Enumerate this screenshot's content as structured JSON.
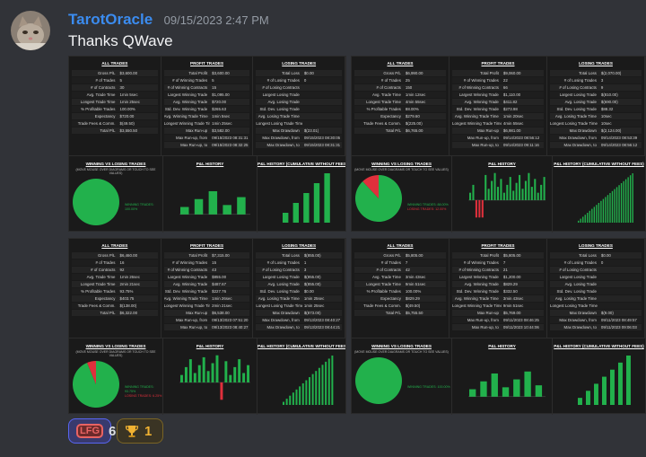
{
  "message": {
    "username": "TarotOracle",
    "timestamp": "09/15/2023 2:47 PM",
    "text": "Thanks QWave"
  },
  "panels": [
    {
      "all_trades": {
        "title": "ALL TRADES",
        "rows": [
          [
            "Gross P/L",
            "$3,600.00"
          ],
          [
            "# of Trades",
            "5"
          ],
          [
            "# of Contracts",
            "30"
          ],
          [
            "Avg. Trade Time",
            "1min 5sec"
          ],
          [
            "Longest Trade Time",
            "1min 25sec"
          ],
          [
            "% Profitable Trades",
            "100.00%"
          ],
          [
            "Expectancy",
            "$720.00"
          ],
          [
            "Trade Fees & Comm.",
            "$(49.50)"
          ],
          [
            "Total P/L",
            "$3,550.50"
          ]
        ]
      },
      "profit_trades": {
        "title": "PROFIT TRADES",
        "rows": [
          [
            "Total Profit",
            "$3,600.00"
          ],
          [
            "# of Winning Trades",
            "5"
          ],
          [
            "# of Winning Contracts",
            "15"
          ],
          [
            "Largest Winning Trade",
            "$1,095.00"
          ],
          [
            "Avg. Winning Trade",
            "$720.00"
          ],
          [
            "Std. Dev. Winning Trade",
            "$265.63"
          ],
          [
            "Avg. Winning Trade Time",
            "1min 5sec"
          ],
          [
            "Longest Winning Trade Time",
            "1min 25sec"
          ],
          [
            "Max Run-up",
            "$3,582.00"
          ],
          [
            "Max Run-up, from",
            "09/15/2023 08:31:31"
          ],
          [
            "Max Run-up, to",
            "09/15/2023 08:32:25"
          ]
        ]
      },
      "losing_trades": {
        "title": "LOSING TRADES",
        "rows": [
          [
            "Total Loss",
            "$0.00"
          ],
          [
            "# of Losing Trades",
            "0"
          ],
          [
            "# of Losing Contracts",
            ""
          ],
          [
            "Largest Losing Trade",
            ""
          ],
          [
            "Avg. Losing Trade",
            ""
          ],
          [
            "Std. Dev. Losing Trade",
            ""
          ],
          [
            "Avg. Losing Trade Time",
            ""
          ],
          [
            "Longest Losing Trade Time",
            ""
          ],
          [
            "Max Drawdown",
            "$(23.01)"
          ],
          [
            "Max Drawdown, from",
            "09/15/2023 08:30:05"
          ],
          [
            "Max Drawdown, to",
            "09/15/2023 08:31:31"
          ]
        ]
      },
      "charts": {
        "pie_title": "WINNING VS LOSING TRADES",
        "pie_sub": "(MOVE MOUSE OVER DIAGRAMS OR TOUCH TO SEE VALUES)",
        "pie_label": "WINNING TRADES: 100.00%",
        "pnl_title": "P&L HISTORY",
        "cum_title": "P&L HISTORY (CUMULATIVE WITHOUT FEES)"
      }
    },
    {
      "all_trades": {
        "title": "ALL TRADES",
        "rows": [
          [
            "Gross P/L",
            "$6,990.00"
          ],
          [
            "# of Trades",
            "25"
          ],
          [
            "# of Contracts",
            "150"
          ],
          [
            "Avg. Trade Time",
            "1min 12sec"
          ],
          [
            "Longest Trade Time",
            "4min 55sec"
          ],
          [
            "% Profitable Trades",
            "88.00%"
          ],
          [
            "Expectancy",
            "$279.60"
          ],
          [
            "Trade Fees & Comm.",
            "$(225.00)"
          ],
          [
            "Total P/L",
            "$6,765.00"
          ]
        ]
      },
      "profit_trades": {
        "title": "PROFIT TRADES",
        "rows": [
          [
            "Total Profit",
            "$9,060.00"
          ],
          [
            "# of Winning Trades",
            "22"
          ],
          [
            "# of Winning Contracts",
            "66"
          ],
          [
            "Largest Winning Trade",
            "$1,110.00"
          ],
          [
            "Avg. Winning Trade",
            "$411.82"
          ],
          [
            "Std. Dev. Winning Trade",
            "$273.98"
          ],
          [
            "Avg. Winning Trade Time",
            "1min 20sec"
          ],
          [
            "Longest Winning Trade Time",
            "4min 55sec"
          ],
          [
            "Max Run-up",
            "$6,981.00"
          ],
          [
            "Max Run-up, from",
            "09/14/2023 08:56:12"
          ],
          [
            "Max Run-up, to",
            "09/14/2023 09:11:16"
          ]
        ]
      },
      "losing_trades": {
        "title": "LOSING TRADES",
        "rows": [
          [
            "Total Loss",
            "$(2,070.00)"
          ],
          [
            "# of Losing Trades",
            "3"
          ],
          [
            "# of Losing Contracts",
            "9"
          ],
          [
            "Largest Losing Trade",
            "$(810.00)"
          ],
          [
            "Avg. Losing Trade",
            "$(690.00)"
          ],
          [
            "Std. Dev. Losing Trade",
            "$88.32"
          ],
          [
            "Avg. Losing Trade Time",
            "10sec"
          ],
          [
            "Longest Losing Trade Time",
            "10sec"
          ],
          [
            "Max Drawdown",
            "$(2,124.00)"
          ],
          [
            "Max Drawdown, from",
            "09/14/2023 08:53:39"
          ],
          [
            "Max Drawdown, to",
            "09/14/2023 08:56:12"
          ]
        ]
      },
      "charts": {
        "pie_title": "WINNING VS LOSING TRADES",
        "pie_sub": "(MOVE MOUSE OVER DIAGRAMS OR TOUCH TO SEE VALUES)",
        "pie_label": "WINNING TRADES: 88.00%",
        "pie_label2": "LOSING TRADES: 12.00%",
        "pnl_title": "P&L HISTORY",
        "cum_title": "P&L HISTORY (CUMULATIVE WITHOUT FEES)"
      }
    },
    {
      "all_trades": {
        "title": "ALL TRADES",
        "rows": [
          [
            "Gross P/L",
            "$6,460.00"
          ],
          [
            "# of Trades",
            "16"
          ],
          [
            "# of Contracts",
            "92"
          ],
          [
            "Avg. Trade Time",
            "1min 26sec"
          ],
          [
            "Longest Trade Time",
            "2min 21sec"
          ],
          [
            "% Profitable Trades",
            "93.75%"
          ],
          [
            "Expectancy",
            "$403.75"
          ],
          [
            "Trade Fees & Comm.",
            "$(138.00)"
          ],
          [
            "Total P/L",
            "$6,322.00"
          ]
        ]
      },
      "profit_trades": {
        "title": "PROFIT TRADES",
        "rows": [
          [
            "Total Profit",
            "$7,315.00"
          ],
          [
            "# of Winning Trades",
            "15"
          ],
          [
            "# of Winning Contracts",
            "43"
          ],
          [
            "Largest Winning Trade",
            "$855.00"
          ],
          [
            "Avg. Winning Trade",
            "$487.67"
          ],
          [
            "Std. Dev. Winning Trade",
            "$227.76"
          ],
          [
            "Avg. Winning Trade Time",
            "1min 26sec"
          ],
          [
            "Longest Winning Trade Time",
            "2min 21sec"
          ],
          [
            "Max Run-up",
            "$6,538.00"
          ],
          [
            "Max Run-up, from",
            "09/13/2023 07:51:20"
          ],
          [
            "Max Run-up, to",
            "09/13/2023 08:40:27"
          ]
        ]
      },
      "losing_trades": {
        "title": "LOSING TRADES",
        "rows": [
          [
            "Total Loss",
            "$(855.00)"
          ],
          [
            "# of Losing Trades",
            "1"
          ],
          [
            "# of Losing Contracts",
            "3"
          ],
          [
            "Largest Losing Trade",
            "$(855.00)"
          ],
          [
            "Avg. Losing Trade",
            "$(855.00)"
          ],
          [
            "Std. Dev. Losing Trade",
            "$0.00"
          ],
          [
            "Avg. Losing Trade Time",
            "1min 25sec"
          ],
          [
            "Longest Losing Trade Time",
            "1min 25sec"
          ],
          [
            "Max Drawdown",
            "$(873.00)"
          ],
          [
            "Max Drawdown, from",
            "09/13/2023 08:40:27"
          ],
          [
            "Max Drawdown, to",
            "09/13/2023 08:44:21"
          ]
        ]
      },
      "charts": {
        "pie_title": "WINNING VS LOSING TRADES",
        "pie_sub": "(MOVE MOUSE OVER DIAGRAMS OR TOUCH TO SEE VALUES)",
        "pie_label": "WINNING TRADES: 93.75%",
        "pie_label2": "LOSING TRADES: 6.25%",
        "pnl_title": "P&L HISTORY",
        "cum_title": "P&L HISTORY (CUMULATIVE WITHOUT FEES)"
      }
    },
    {
      "all_trades": {
        "title": "ALL TRADES",
        "rows": [
          [
            "Gross P/L",
            "$5,805.00"
          ],
          [
            "# of Trades",
            "7"
          ],
          [
            "# of Contracts",
            "42"
          ],
          [
            "Avg. Trade Time",
            "3min 43sec"
          ],
          [
            "Longest Trade Time",
            "9min 51sec"
          ],
          [
            "% Profitable Trades",
            "100.00%"
          ],
          [
            "Expectancy",
            "$829.29"
          ],
          [
            "Trade Fees & Comm.",
            "$(49.50)"
          ],
          [
            "Total P/L",
            "$5,755.50"
          ]
        ]
      },
      "profit_trades": {
        "title": "PROFIT TRADES",
        "rows": [
          [
            "Total Profit",
            "$5,805.00"
          ],
          [
            "# of Winning Trades",
            "7"
          ],
          [
            "# of Winning Contracts",
            "21"
          ],
          [
            "Largest Winning Trade",
            "$1,200.00"
          ],
          [
            "Avg. Winning Trade",
            "$829.29"
          ],
          [
            "Std. Dev. Winning Trade",
            "$332.50"
          ],
          [
            "Avg. Winning Trade Time",
            "3min 43sec"
          ],
          [
            "Longest Winning Trade Time",
            "9min 51sec"
          ],
          [
            "Max Run-up",
            "$5,769.00"
          ],
          [
            "Max Run-up, from",
            "09/11/2023 08:46:25"
          ],
          [
            "Max Run-up, to",
            "09/11/2023 10:44:06"
          ]
        ]
      },
      "losing_trades": {
        "title": "LOSING TRADES",
        "rows": [
          [
            "Total Loss",
            "$0.00"
          ],
          [
            "# of Losing Trades",
            "0"
          ],
          [
            "# of Losing Contracts",
            ""
          ],
          [
            "Largest Losing Trade",
            ""
          ],
          [
            "Avg. Losing Trade",
            ""
          ],
          [
            "Std. Dev. Losing Trade",
            ""
          ],
          [
            "Avg. Losing Trade Time",
            ""
          ],
          [
            "Longest Losing Trade Time",
            ""
          ],
          [
            "Max Drawdown",
            "$(9.00)"
          ],
          [
            "Max Drawdown, from",
            "09/11/2023 08:49:57"
          ],
          [
            "Max Drawdown, to",
            "09/11/2023 09:06:03"
          ]
        ]
      },
      "charts": {
        "pie_title": "WINNING VS LOSING TRADES",
        "pie_sub": "(MOVE MOUSE OVER DIAGRAMS OR TOUCH TO SEE VALUES)",
        "pie_label": "WINNING TRADES: 100.00%",
        "pnl_title": "P&L HISTORY",
        "cum_title": "P&L HISTORY (CUMULATIVE WITHOUT FEES)"
      }
    }
  ],
  "reactions": [
    {
      "emoji": "LFG",
      "count": "6"
    },
    {
      "emoji": "trophy-icon",
      "count": "1"
    }
  ],
  "colors": {
    "username": "#3b8cf0",
    "win": "#22b14c",
    "loss": "#e0303c",
    "panel": "#1a1a1a"
  }
}
